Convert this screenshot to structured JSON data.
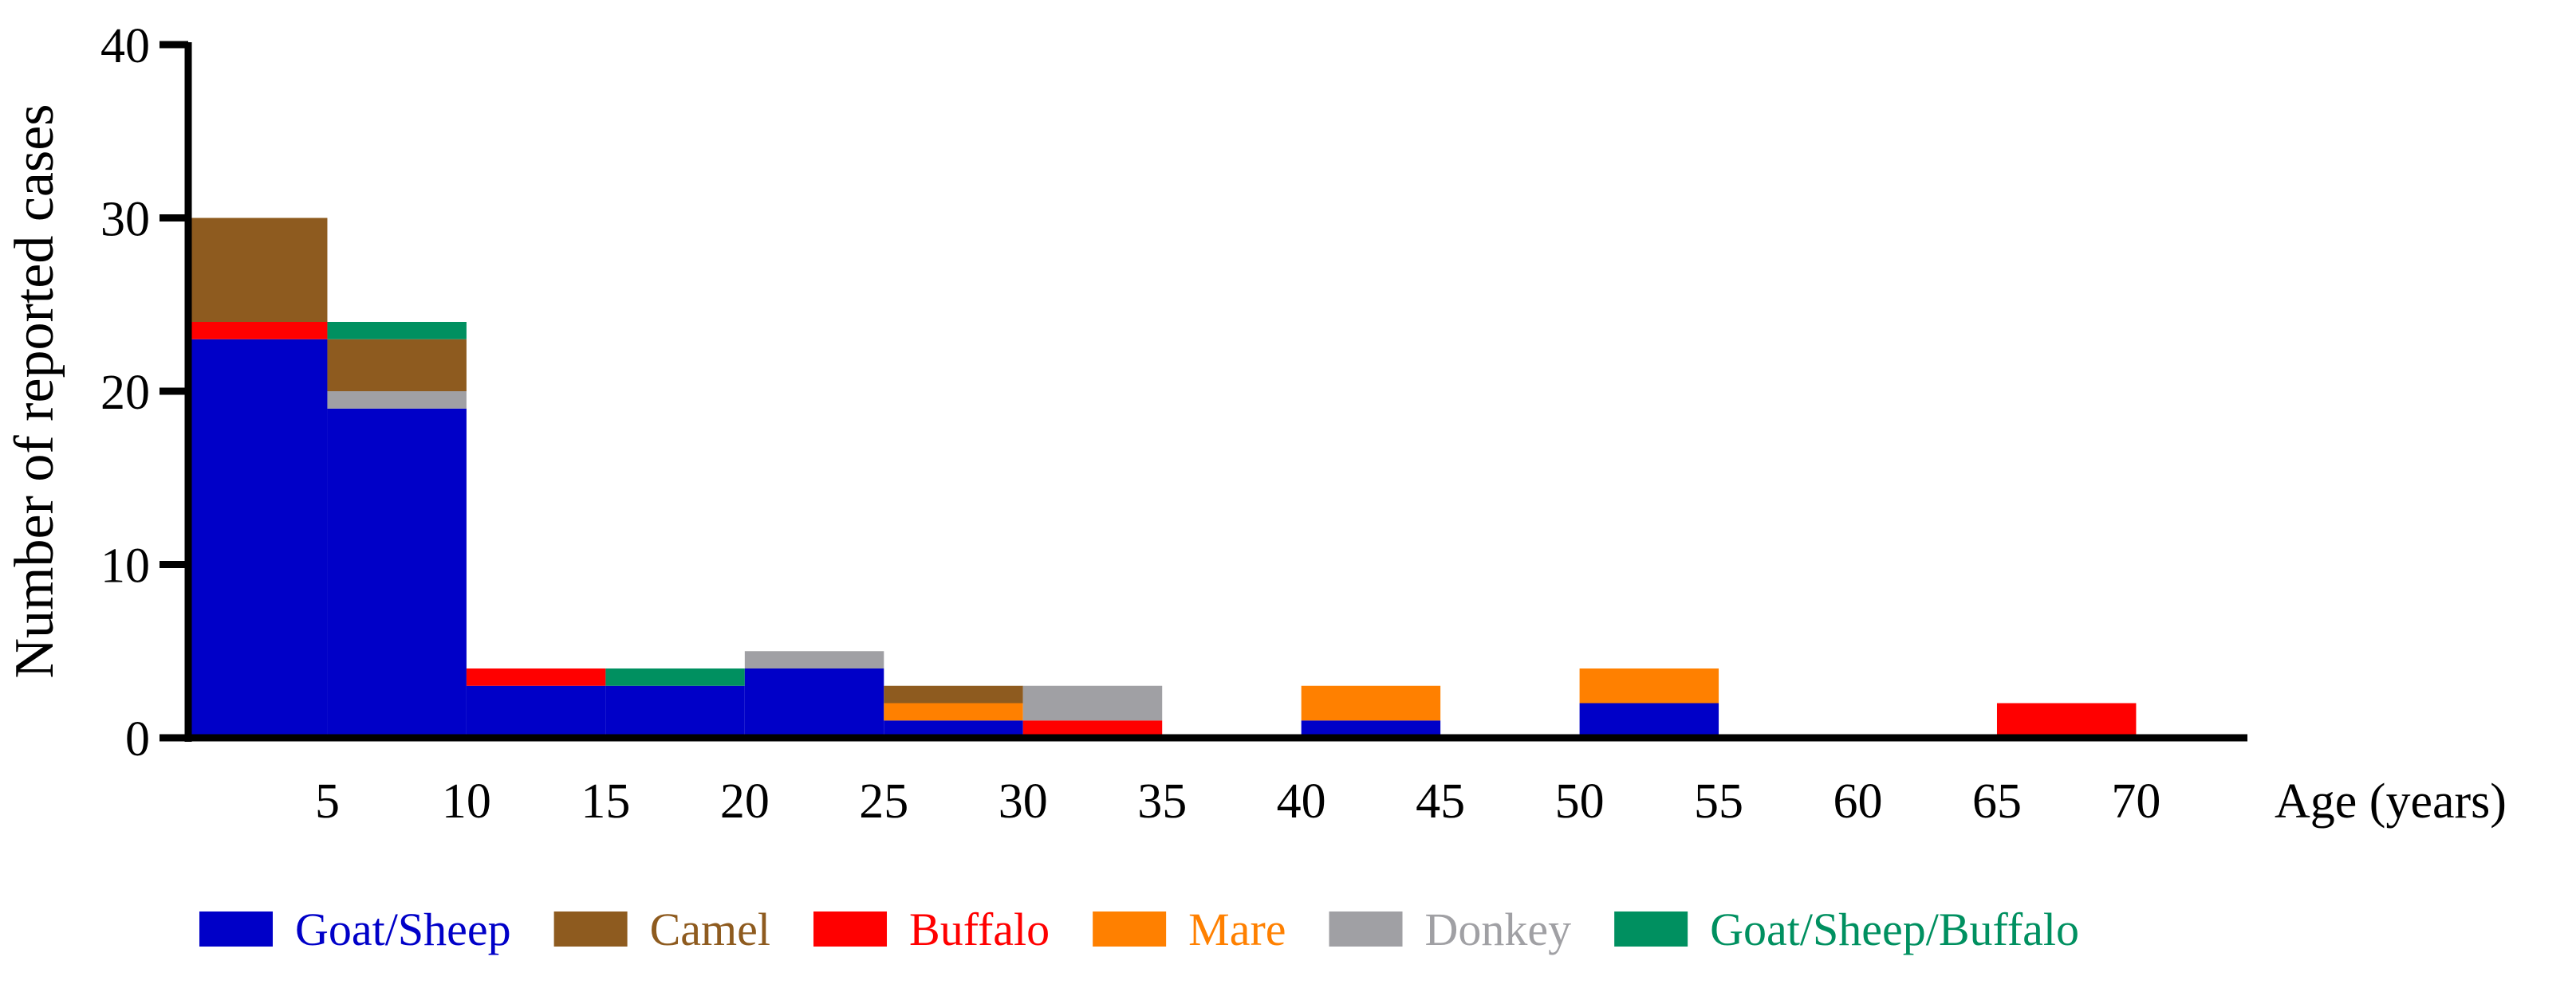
{
  "chart_data": {
    "type": "bar",
    "stacked": true,
    "title": "",
    "xlabel": "Age (years)",
    "ylabel": "Number of reported cases",
    "ylim": [
      0,
      40
    ],
    "yticks": [
      0,
      10,
      20,
      30,
      40
    ],
    "xlim": [
      0,
      74
    ],
    "xticks": [
      5,
      10,
      15,
      20,
      25,
      30,
      35,
      40,
      45,
      50,
      55,
      60,
      65,
      70
    ],
    "legend_position": "bottom",
    "grid": false,
    "bins": [
      {
        "start": 0,
        "end": 5
      },
      {
        "start": 5,
        "end": 10
      },
      {
        "start": 10,
        "end": 15
      },
      {
        "start": 15,
        "end": 20
      },
      {
        "start": 20,
        "end": 25
      },
      {
        "start": 25,
        "end": 30
      },
      {
        "start": 30,
        "end": 35
      },
      {
        "start": 35,
        "end": 40
      },
      {
        "start": 40,
        "end": 45
      },
      {
        "start": 45,
        "end": 50
      },
      {
        "start": 50,
        "end": 55
      },
      {
        "start": 55,
        "end": 60
      },
      {
        "start": 60,
        "end": 65
      },
      {
        "start": 65,
        "end": 70
      }
    ],
    "series": [
      {
        "name": "Goat/Sheep",
        "color": "#0000C8",
        "values": [
          23,
          19,
          3,
          3,
          4,
          1,
          0,
          0,
          1,
          0,
          2,
          0,
          0,
          0
        ]
      },
      {
        "name": "Camel",
        "color": "#8E5B1F",
        "values": [
          6,
          3,
          0,
          0,
          0,
          1,
          0,
          0,
          0,
          0,
          0,
          0,
          0,
          0
        ]
      },
      {
        "name": "Buffalo",
        "color": "#FF0000",
        "values": [
          1,
          0,
          1,
          0,
          0,
          0,
          1,
          0,
          0,
          0,
          0,
          0,
          0,
          2
        ]
      },
      {
        "name": "Mare",
        "color": "#FF8000",
        "values": [
          0,
          0,
          0,
          0,
          0,
          1,
          0,
          0,
          2,
          0,
          2,
          0,
          0,
          0
        ]
      },
      {
        "name": "Donkey",
        "color": "#A0A0A4",
        "values": [
          0,
          1,
          0,
          0,
          1,
          0,
          2,
          0,
          0,
          0,
          0,
          0,
          0,
          0
        ]
      },
      {
        "name": "Goat/Sheep/Buffalo",
        "color": "#009060",
        "values": [
          0,
          1,
          0,
          1,
          0,
          0,
          0,
          0,
          0,
          0,
          0,
          0,
          0,
          0
        ]
      }
    ],
    "stack_order": [
      [
        0,
        2,
        1
      ],
      [
        0,
        4,
        1,
        5
      ],
      [
        0,
        2
      ],
      [
        0,
        5
      ],
      [
        0,
        4
      ],
      [
        0,
        3,
        1
      ],
      [
        2,
        4
      ],
      [],
      [
        0,
        3
      ],
      [],
      [
        0,
        3
      ],
      [],
      [],
      [
        2
      ]
    ]
  }
}
